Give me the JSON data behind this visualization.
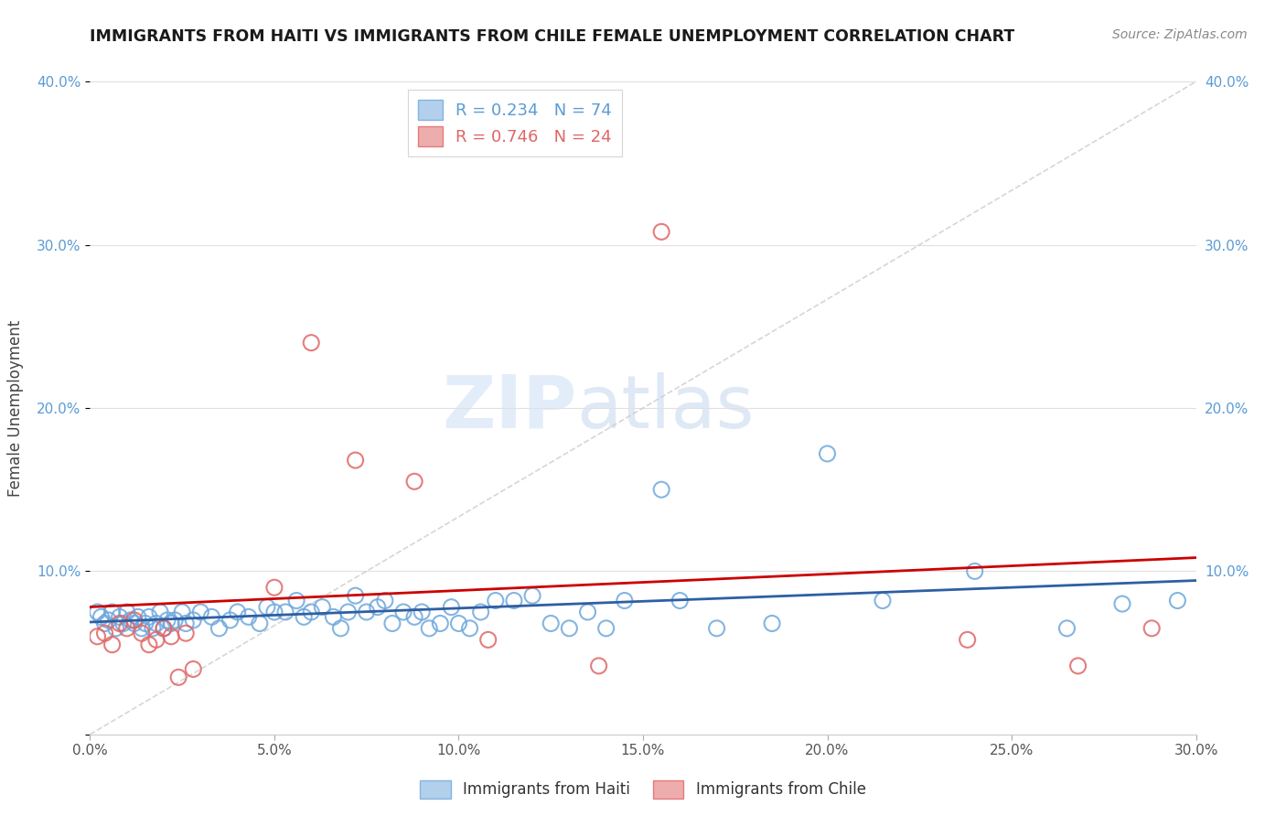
{
  "title": "IMMIGRANTS FROM HAITI VS IMMIGRANTS FROM CHILE FEMALE UNEMPLOYMENT CORRELATION CHART",
  "source": "Source: ZipAtlas.com",
  "ylabel": "Female Unemployment",
  "xlim": [
    0.0,
    0.3
  ],
  "ylim": [
    0.0,
    0.4
  ],
  "x_ticks": [
    0.0,
    0.05,
    0.1,
    0.15,
    0.2,
    0.25,
    0.3
  ],
  "y_ticks": [
    0.0,
    0.1,
    0.2,
    0.3,
    0.4
  ],
  "haiti_color": "#9fc5e8",
  "haiti_edge_color": "#6fa8dc",
  "chile_color": "#ea9999",
  "chile_edge_color": "#e06666",
  "haiti_R": "0.234",
  "haiti_N": "74",
  "chile_R": "0.746",
  "chile_N": "24",
  "watermark_zip": "ZIP",
  "watermark_atlas": "atlas",
  "legend_haiti_color": "#5b9bd5",
  "legend_chile_color": "#e06666",
  "trend_haiti_color": "#2e5fa3",
  "trend_chile_color": "#cc0000",
  "diag_line_color": "#cccccc",
  "background_color": "#ffffff",
  "grid_color": "#e0e0e0",
  "haiti_x": [
    0.002,
    0.003,
    0.004,
    0.005,
    0.006,
    0.007,
    0.008,
    0.009,
    0.01,
    0.011,
    0.012,
    0.013,
    0.014,
    0.015,
    0.016,
    0.017,
    0.018,
    0.019,
    0.02,
    0.021,
    0.022,
    0.023,
    0.025,
    0.026,
    0.028,
    0.03,
    0.033,
    0.035,
    0.038,
    0.04,
    0.043,
    0.046,
    0.048,
    0.05,
    0.053,
    0.056,
    0.058,
    0.06,
    0.063,
    0.066,
    0.068,
    0.07,
    0.072,
    0.075,
    0.078,
    0.08,
    0.082,
    0.085,
    0.088,
    0.09,
    0.092,
    0.095,
    0.098,
    0.1,
    0.103,
    0.106,
    0.11,
    0.115,
    0.12,
    0.125,
    0.13,
    0.135,
    0.14,
    0.145,
    0.155,
    0.16,
    0.17,
    0.185,
    0.2,
    0.215,
    0.24,
    0.265,
    0.28,
    0.295
  ],
  "haiti_y": [
    0.075,
    0.072,
    0.068,
    0.07,
    0.075,
    0.065,
    0.072,
    0.068,
    0.075,
    0.07,
    0.068,
    0.072,
    0.065,
    0.068,
    0.072,
    0.065,
    0.068,
    0.075,
    0.065,
    0.07,
    0.068,
    0.07,
    0.075,
    0.068,
    0.07,
    0.075,
    0.072,
    0.065,
    0.07,
    0.075,
    0.072,
    0.068,
    0.078,
    0.075,
    0.075,
    0.082,
    0.072,
    0.075,
    0.078,
    0.072,
    0.065,
    0.075,
    0.085,
    0.075,
    0.078,
    0.082,
    0.068,
    0.075,
    0.072,
    0.075,
    0.065,
    0.068,
    0.078,
    0.068,
    0.065,
    0.075,
    0.082,
    0.082,
    0.085,
    0.068,
    0.065,
    0.075,
    0.065,
    0.082,
    0.15,
    0.082,
    0.065,
    0.068,
    0.172,
    0.082,
    0.1,
    0.065,
    0.08,
    0.082
  ],
  "chile_x": [
    0.002,
    0.004,
    0.006,
    0.008,
    0.01,
    0.012,
    0.014,
    0.016,
    0.018,
    0.02,
    0.022,
    0.024,
    0.026,
    0.028,
    0.05,
    0.06,
    0.072,
    0.088,
    0.108,
    0.138,
    0.155,
    0.238,
    0.268,
    0.288
  ],
  "chile_y": [
    0.06,
    0.062,
    0.055,
    0.068,
    0.065,
    0.07,
    0.062,
    0.055,
    0.058,
    0.065,
    0.06,
    0.035,
    0.062,
    0.04,
    0.09,
    0.24,
    0.168,
    0.155,
    0.058,
    0.042,
    0.308,
    0.058,
    0.042,
    0.065
  ]
}
